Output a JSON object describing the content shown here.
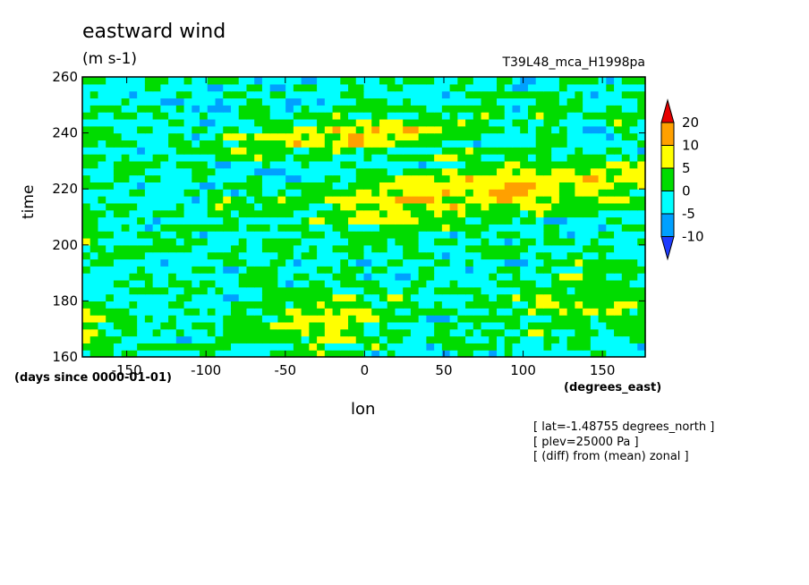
{
  "chart_data": {
    "type": "heatmap",
    "title": "eastward wind",
    "units": "(m s-1)",
    "run_label": "T39L48_mca_H1998pa",
    "xlabel": "lon",
    "ylabel": "time",
    "x_units": "(degrees_east)",
    "y_units": "(days since 0000-01-01)",
    "xlim": [
      -178,
      177
    ],
    "ylim": [
      160,
      260
    ],
    "x_ticks": [
      "-150",
      "-100",
      "-50",
      "0",
      "50",
      "100",
      "150"
    ],
    "y_ticks": [
      "160",
      "180",
      "200",
      "220",
      "240",
      "260"
    ],
    "colorbar": {
      "levels": [
        "-10",
        "-5",
        "0",
        "5",
        "10",
        "20"
      ],
      "colors": [
        "#1e3cff",
        "#00a0ff",
        "#00ffff",
        "#00dc00",
        "#ffff00",
        "#ffa000",
        "#e60000"
      ]
    },
    "field": {
      "nx": 72,
      "ny": 40,
      "waves": [
        {
          "amp": 11,
          "slope": 0.055,
          "kx": 0.9,
          "phase": 0.3,
          "t_center": 215,
          "t_width": 9
        },
        {
          "amp": 9,
          "slope": 0.05,
          "kx": 1.3,
          "phase": 1.7,
          "t_center": 240,
          "t_width": 6
        },
        {
          "amp": 6,
          "slope": 0.045,
          "kx": 2.1,
          "phase": 2.9,
          "t_center": 175,
          "t_width": 12
        }
      ],
      "noise_amp": 7,
      "seed": 1998
    },
    "notes": [
      "[ lat=-1.48755 degrees_north ]",
      "[ plev=25000 Pa ]",
      "[ (diff) from (mean) zonal ]"
    ]
  }
}
